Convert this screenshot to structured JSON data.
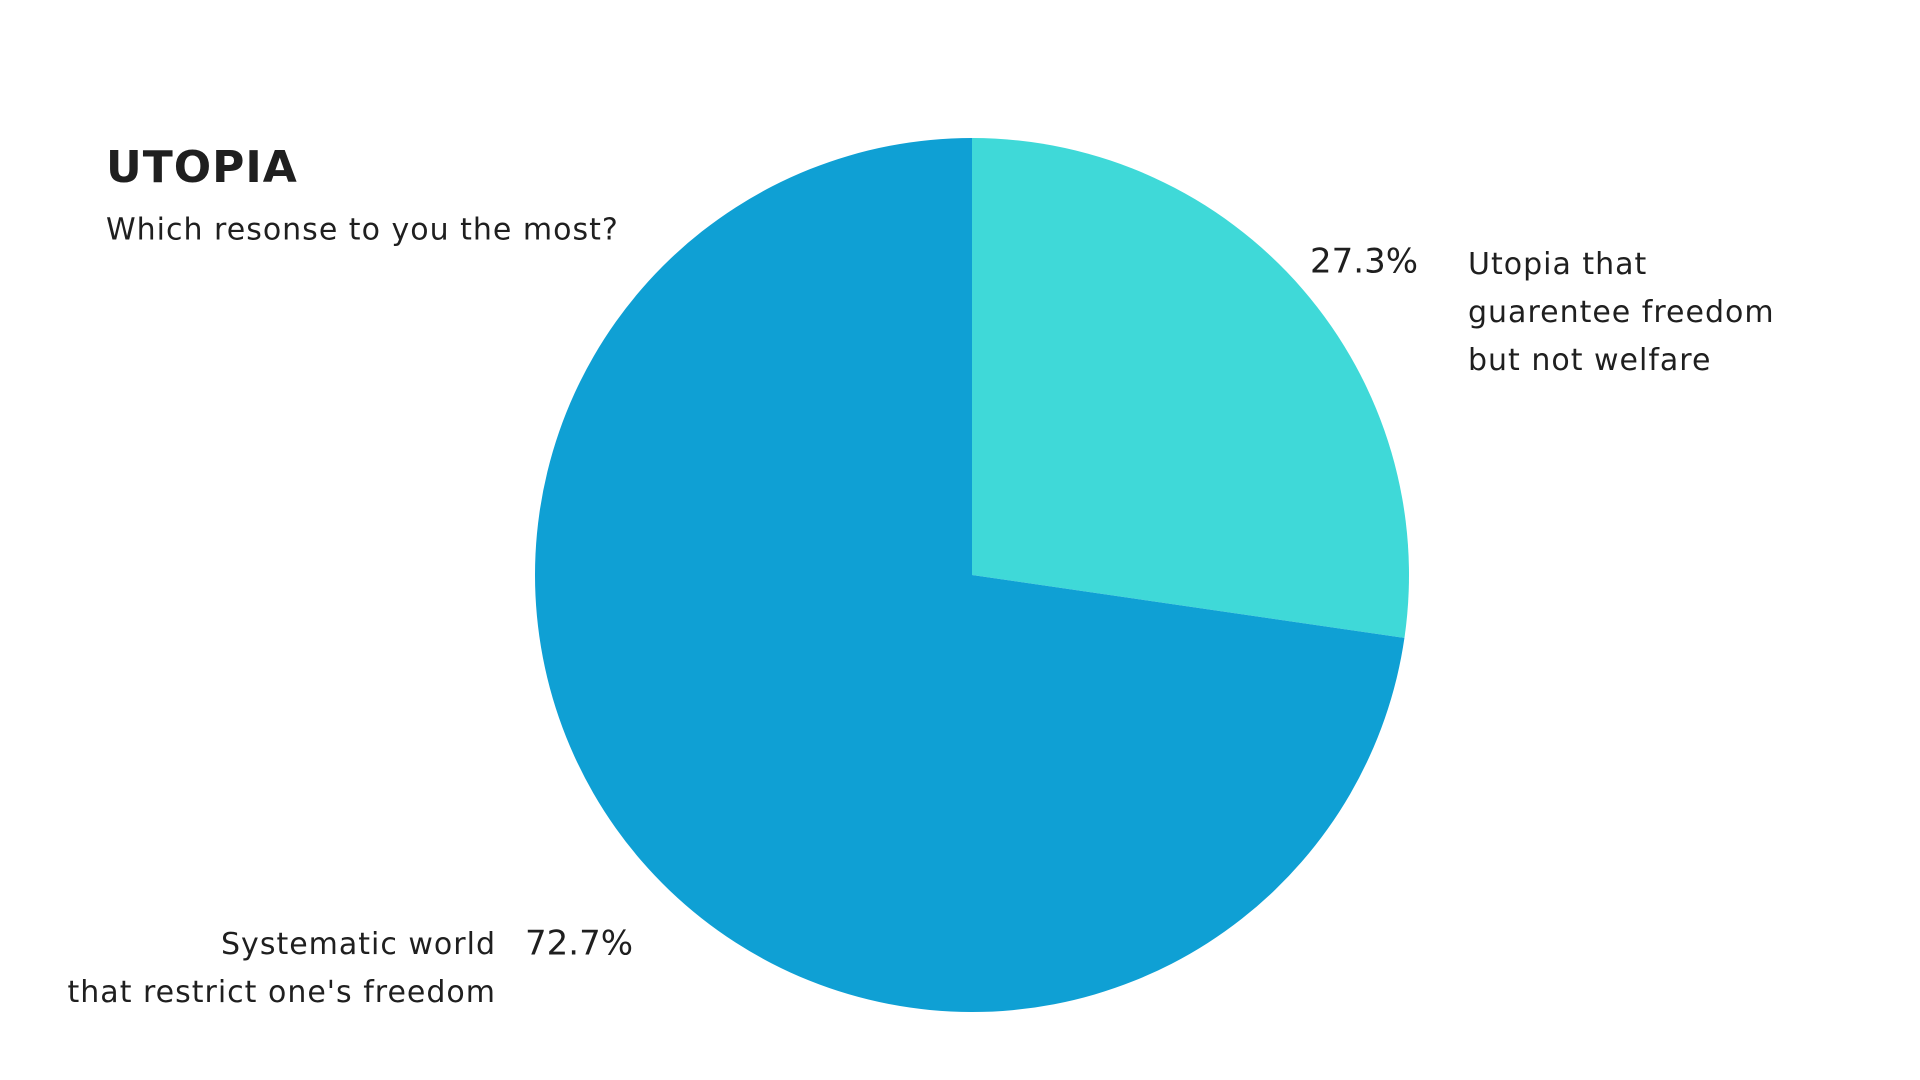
{
  "chart_data": {
    "type": "pie",
    "title": "UTOPIA",
    "subtitle": "Which resonse to you the most?",
    "categories": [
      "Utopia that\nguarentee freedom\nbut not welfare",
      "Systematic world\nthat restrict one's freedom"
    ],
    "values": [
      27.3,
      72.7
    ],
    "value_labels": [
      "27.3%",
      "72.7%"
    ],
    "colors": [
      "#3fd9d8",
      "#0fa0d4"
    ]
  }
}
